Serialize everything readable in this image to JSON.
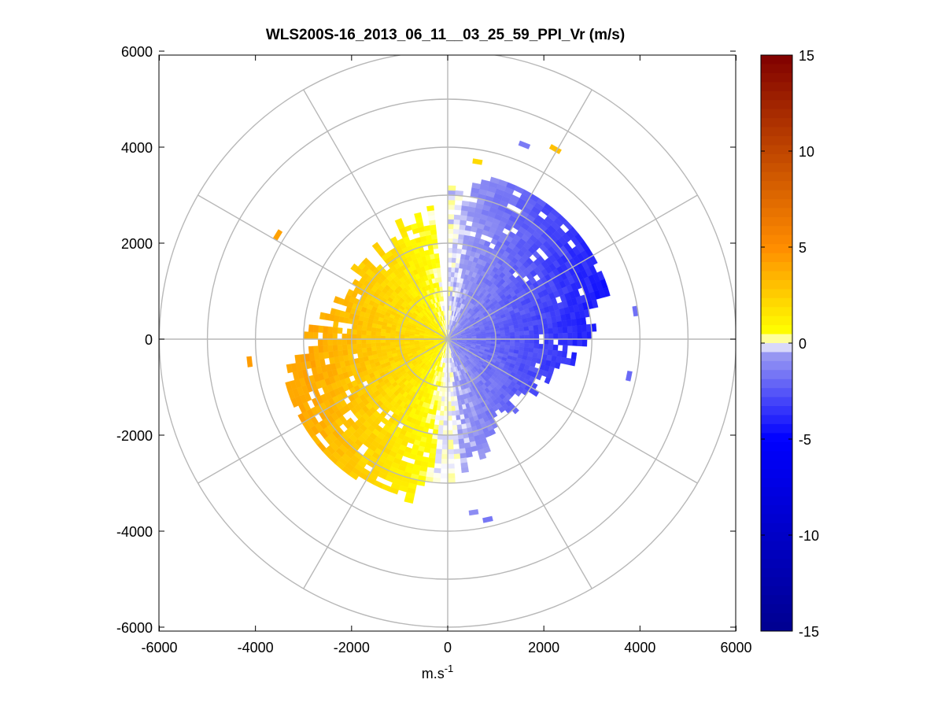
{
  "chart_data": {
    "type": "heatmap",
    "subtype": "polar-ppi",
    "title": "WLS200S-16_2013_06_11__03_25_59_PPI_Vr (m/s)",
    "xlabel": "m.s",
    "xlabel_sup": "-1",
    "ylabel": "",
    "xlim": [
      -6000,
      6000
    ],
    "ylim": [
      -6000,
      6000
    ],
    "x_ticks": [
      -6000,
      -4000,
      -2000,
      0,
      2000,
      4000,
      6000
    ],
    "y_ticks": [
      -6000,
      -4000,
      -2000,
      0,
      2000,
      4000,
      6000
    ],
    "x_tick_labels": [
      "-6000",
      "-4000",
      "-2000",
      "0",
      "2000",
      "4000",
      "6000"
    ],
    "y_tick_labels": [
      "-6000",
      "-4000",
      "-2000",
      "0",
      "2000",
      "4000",
      "6000"
    ],
    "range_rings_m": [
      1000,
      2000,
      3000,
      4000,
      5000,
      6000
    ],
    "spoke_angles_deg": [
      0,
      30,
      60,
      90,
      120,
      150,
      180,
      210,
      240,
      270,
      300,
      330
    ],
    "colorbar": {
      "min": -15,
      "max": 15,
      "ticks": [
        15,
        10,
        5,
        0,
        -5,
        -10,
        -15
      ],
      "tick_labels": [
        "15",
        "10",
        "5",
        "0",
        "-5",
        "-10",
        "-15"
      ],
      "colors": {
        "strong_negative": "#00008f",
        "negative": "#0000ff",
        "weak_negative": "#9a9af2",
        "zero": "#ffffff",
        "weak_positive": "#ffff00",
        "positive": "#ff8c00",
        "strong_positive": "#800000"
      }
    },
    "scan": {
      "range_gate_m": 100,
      "max_range_m": 3500,
      "azimuth_step_deg": 3,
      "gap_azimuths_deg": [
        359,
        360
      ],
      "positive_sector_deg": [
        180,
        360
      ],
      "negative_sector_deg": [
        0,
        175
      ],
      "positive_peak_ms": 4.5,
      "negative_peak_ms": -4.5
    }
  }
}
